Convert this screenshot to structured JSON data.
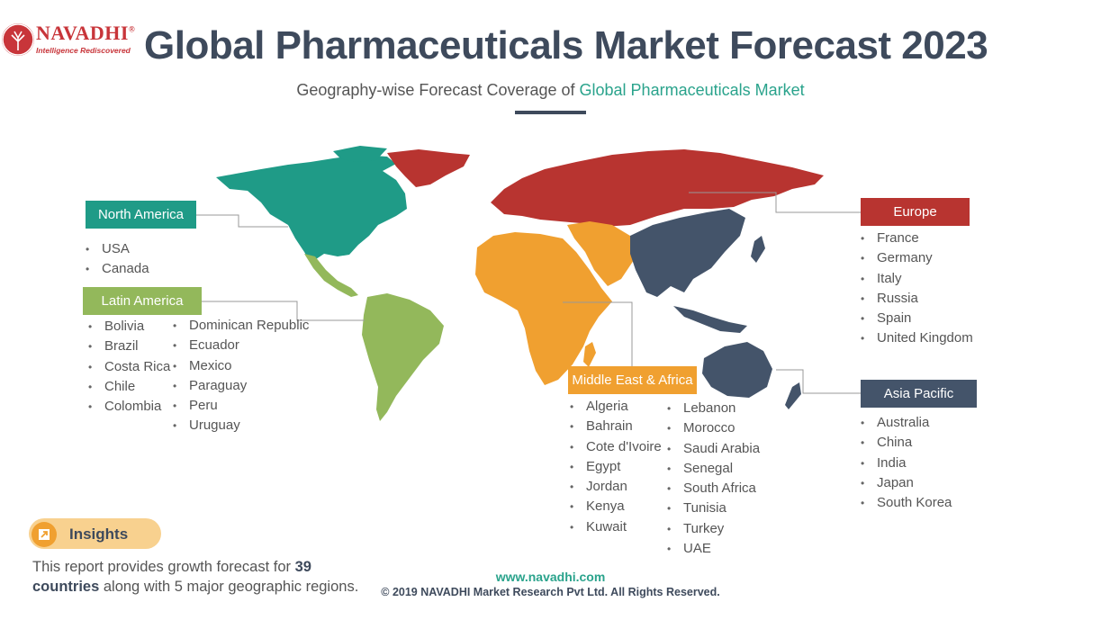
{
  "brand": {
    "name": "NAVADHI",
    "registered": "®",
    "tagline": "Intelligence Rediscovered",
    "color": "#c8353a"
  },
  "header": {
    "title": "Global Pharmaceuticals Market Forecast 2023",
    "subtitle_prefix": "Geography-wise Forecast Coverage of ",
    "subtitle_highlight": "Global Pharmaceuticals Market"
  },
  "regions": {
    "north_america": {
      "label": "North America",
      "color": "#1f9b87",
      "countries": [
        "USA",
        "Canada"
      ]
    },
    "latin_america": {
      "label": "Latin America",
      "color": "#93b85b",
      "countries_col1": [
        "Bolivia",
        "Brazil",
        "Costa Rica",
        "Chile",
        "Colombia"
      ],
      "countries_col2": [
        "Dominican Republic",
        "Ecuador",
        "Mexico",
        "Paraguay",
        "Peru",
        "Uruguay"
      ]
    },
    "europe": {
      "label": "Europe",
      "color": "#b83430",
      "countries": [
        "France",
        "Germany",
        "Italy",
        "Russia",
        "Spain",
        "United Kingdom"
      ]
    },
    "asia_pacific": {
      "label": "Asia Pacific",
      "color": "#44546a",
      "countries": [
        "Australia",
        "China",
        "India",
        "Japan",
        "South Korea"
      ]
    },
    "middle_east_africa": {
      "label": "Middle East & Africa",
      "color": "#f0a030",
      "countries_col1": [
        "Algeria",
        "Bahrain",
        "Cote d'Ivoire",
        "Egypt",
        "Jordan",
        "Kenya",
        "Kuwait"
      ],
      "countries_col2": [
        "Lebanon",
        "Morocco",
        "Saudi Arabia",
        "Senegal",
        "South Africa",
        "Tunisia",
        "Turkey",
        "UAE"
      ]
    }
  },
  "insights": {
    "label": "Insights",
    "icon": "arrow-up-right-icon",
    "text_prefix": "This report provides growth forecast for ",
    "count": "39",
    "text_bold": "countries",
    "text_suffix": " along with 5 major geographic regions."
  },
  "footer": {
    "url": "www.navadhi.com",
    "copyright": "© 2019 NAVADHI Market Research Pvt Ltd. All Rights Reserved."
  }
}
